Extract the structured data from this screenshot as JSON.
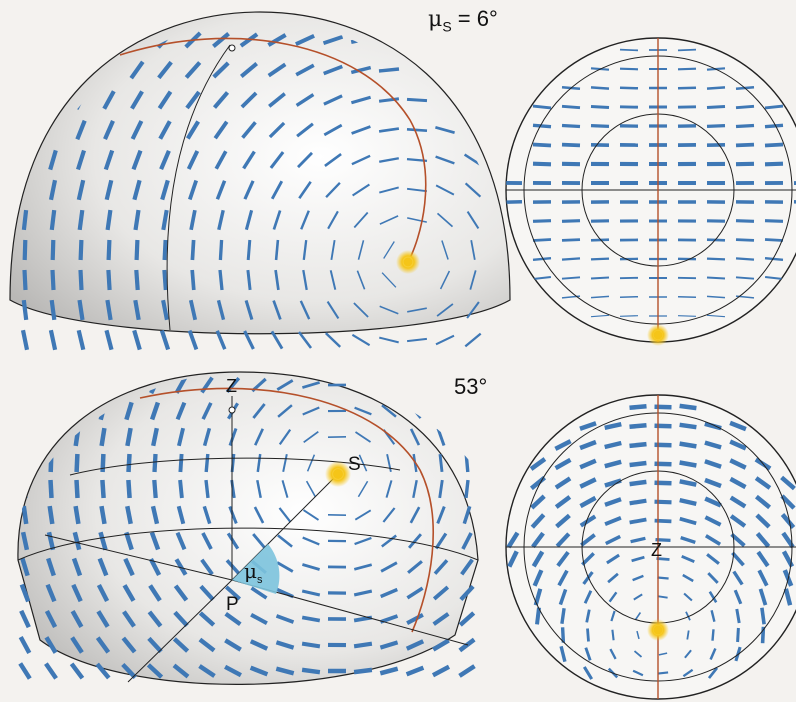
{
  "top_caption": {
    "symbol": "μ",
    "subscript": "S",
    "equals": " = 6°"
  },
  "bottom_caption": "53°",
  "labels": {
    "zenith": "Z",
    "sun": "S",
    "observer": "P",
    "angle_symbol": "μ",
    "angle_subscript": "s",
    "zenith_disk": "Z"
  },
  "colors": {
    "background": "#f4f2ef",
    "dome_fill": "#ecebe9",
    "dash_blue": "#3f78b5",
    "meridian_red": "#b5502a",
    "sun_yellow": "#f5c518",
    "angle_cyan": "#7cc3dd",
    "line_dark": "#1a1a1a"
  },
  "panels": {
    "top_dome": {
      "sun_elevation_deg": 6
    },
    "top_disk": {
      "sun_elevation_deg": 6
    },
    "bottom_dome": {
      "sun_elevation_deg": 53
    },
    "bottom_disk": {
      "sun_elevation_deg": 53
    }
  }
}
